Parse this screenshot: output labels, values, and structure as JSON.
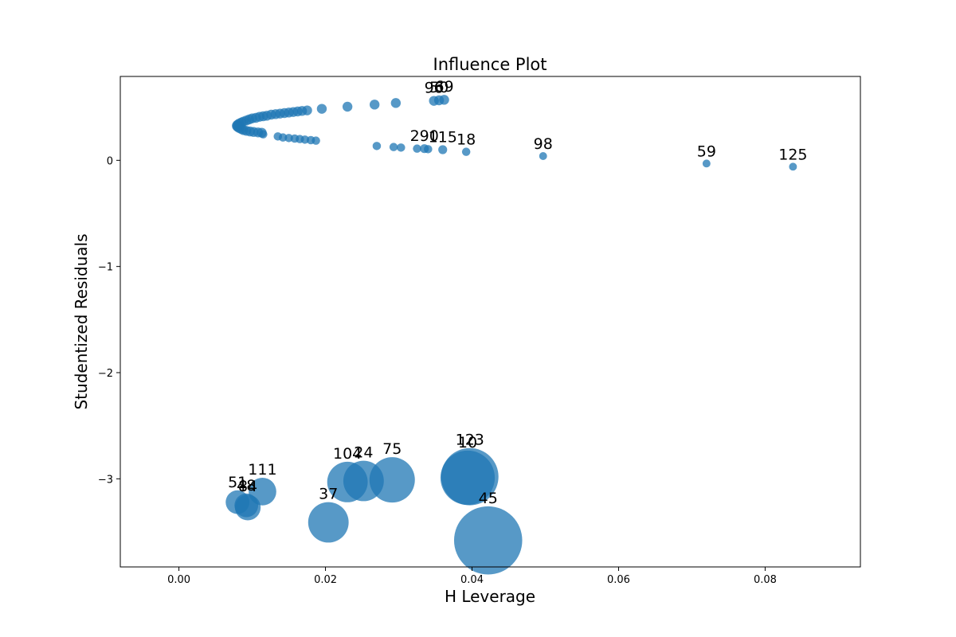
{
  "chart_data": {
    "type": "scatter",
    "title": "Influence Plot",
    "xlabel": "H Leverage",
    "ylabel": "Studentized Residuals",
    "xlim": [
      -0.008,
      0.093
    ],
    "ylim": [
      -3.83,
      0.79
    ],
    "xticks": [
      "0.00",
      "0.02",
      "0.04",
      "0.06",
      "0.08"
    ],
    "xtick_values": [
      0.0,
      0.02,
      0.04,
      0.06,
      0.08
    ],
    "yticks": [
      "0",
      "−1",
      "−2",
      "−3"
    ],
    "ytick_values": [
      0,
      -1,
      -2,
      -3
    ],
    "grid": false,
    "color": "#1f77b4",
    "points_upper_arc": [
      [
        0.0175,
        0.47
      ],
      [
        0.0168,
        0.465
      ],
      [
        0.0162,
        0.46
      ],
      [
        0.0156,
        0.455
      ],
      [
        0.015,
        0.45
      ],
      [
        0.0144,
        0.445
      ],
      [
        0.0138,
        0.44
      ],
      [
        0.0132,
        0.435
      ],
      [
        0.0126,
        0.43
      ],
      [
        0.012,
        0.42
      ],
      [
        0.0115,
        0.415
      ],
      [
        0.011,
        0.41
      ],
      [
        0.0105,
        0.4
      ],
      [
        0.01,
        0.395
      ],
      [
        0.0096,
        0.385
      ],
      [
        0.0092,
        0.375
      ],
      [
        0.0088,
        0.365
      ],
      [
        0.0085,
        0.355
      ],
      [
        0.0082,
        0.345
      ],
      [
        0.008,
        0.335
      ],
      [
        0.0079,
        0.325
      ],
      [
        0.008,
        0.315
      ],
      [
        0.0082,
        0.305
      ],
      [
        0.0085,
        0.295
      ],
      [
        0.0088,
        0.285
      ],
      [
        0.0092,
        0.278
      ],
      [
        0.0097,
        0.272
      ],
      [
        0.0102,
        0.267
      ],
      [
        0.0108,
        0.263
      ],
      [
        0.0113,
        0.26
      ],
      [
        0.0195,
        0.485
      ],
      [
        0.023,
        0.505
      ],
      [
        0.0267,
        0.525
      ],
      [
        0.0296,
        0.54
      ]
    ],
    "points_lower_arc": [
      [
        0.0115,
        0.245
      ],
      [
        0.0135,
        0.225
      ],
      [
        0.0142,
        0.215
      ],
      [
        0.015,
        0.21
      ],
      [
        0.0158,
        0.205
      ],
      [
        0.0165,
        0.2
      ],
      [
        0.0172,
        0.195
      ],
      [
        0.018,
        0.19
      ],
      [
        0.0187,
        0.185
      ],
      [
        0.027,
        0.135
      ],
      [
        0.0293,
        0.125
      ],
      [
        0.0303,
        0.12
      ],
      [
        0.0325,
        0.11
      ],
      [
        0.034,
        0.105
      ]
    ],
    "labeled_points": [
      {
        "label": "96",
        "x": 0.0348,
        "y": 0.56,
        "size": 1
      },
      {
        "label": "50",
        "x": 0.0355,
        "y": 0.565,
        "size": 1
      },
      {
        "label": "69",
        "x": 0.0362,
        "y": 0.57,
        "size": 1
      },
      {
        "label": "290",
        "x": 0.0335,
        "y": 0.11,
        "size": 0.9
      },
      {
        "label": "115",
        "x": 0.036,
        "y": 0.1,
        "size": 0.9
      },
      {
        "label": "18",
        "x": 0.0392,
        "y": 0.08,
        "size": 0.85
      },
      {
        "label": "98",
        "x": 0.0497,
        "y": 0.04,
        "size": 0.8
      },
      {
        "label": "59",
        "x": 0.072,
        "y": -0.03,
        "size": 0.8
      },
      {
        "label": "125",
        "x": 0.0838,
        "y": -0.06,
        "size": 0.8
      },
      {
        "label": "111",
        "x": 0.0114,
        "y": -3.12,
        "size": 2.8
      },
      {
        "label": "51",
        "x": 0.008,
        "y": -3.22,
        "size": 2.4
      },
      {
        "label": "84",
        "x": 0.0094,
        "y": -3.27,
        "size": 2.6
      },
      {
        "label": "48",
        "x": 0.0092,
        "y": -3.25,
        "size": 2.4
      },
      {
        "label": "37",
        "x": 0.0204,
        "y": -3.41,
        "size": 4.1
      },
      {
        "label": "104",
        "x": 0.023,
        "y": -3.03,
        "size": 4.1
      },
      {
        "label": "24",
        "x": 0.0252,
        "y": -3.02,
        "size": 4.1
      },
      {
        "label": "75",
        "x": 0.0291,
        "y": -3.01,
        "size": 4.6
      },
      {
        "label": "10",
        "x": 0.0394,
        "y": -2.99,
        "size": 5.5
      },
      {
        "label": "123",
        "x": 0.0397,
        "y": -2.98,
        "size": 5.8
      },
      {
        "label": "45",
        "x": 0.0422,
        "y": -3.58,
        "size": 6.9
      }
    ]
  }
}
